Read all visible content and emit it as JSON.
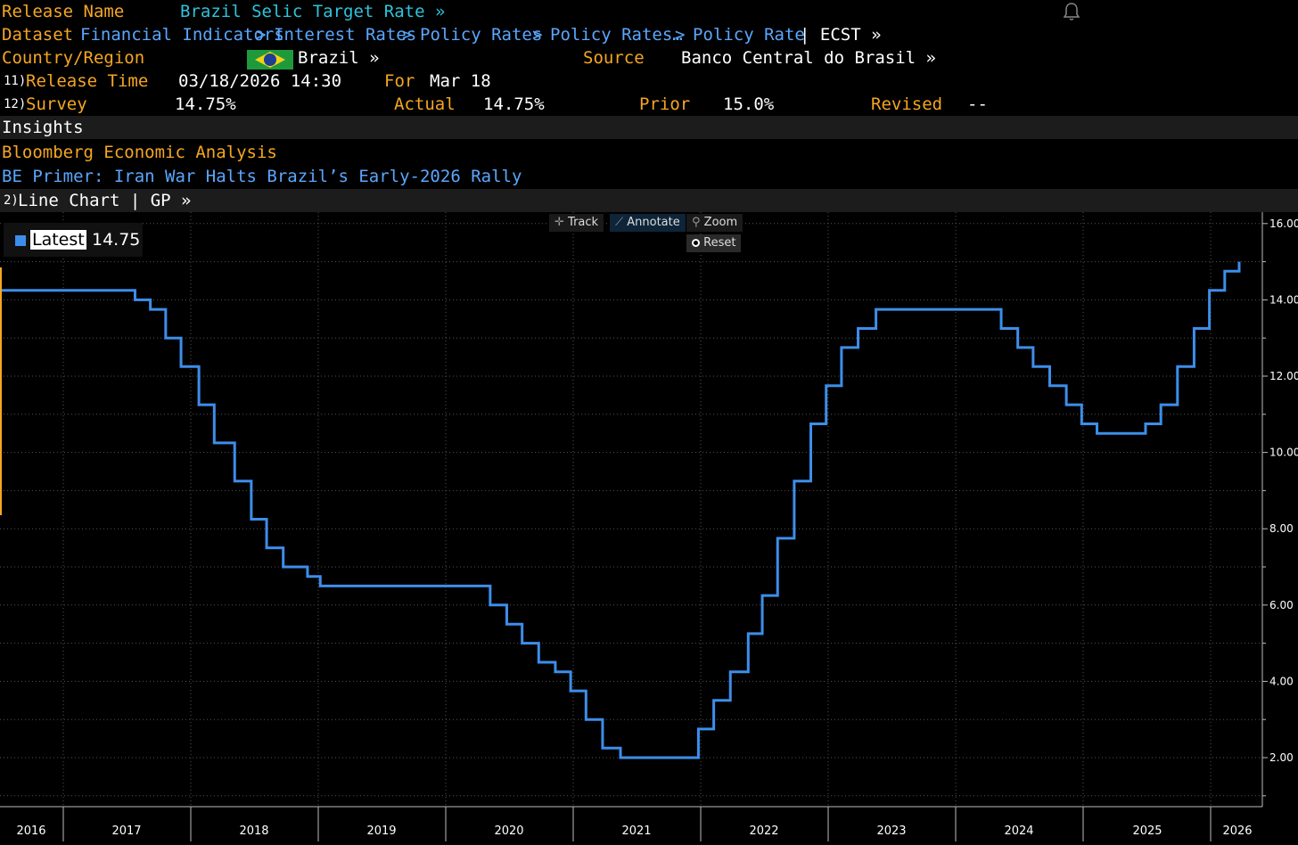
{
  "header": {
    "release_name_label": "Release Name",
    "release_name_value": "Brazil Selic Target Rate »",
    "dataset_label": "Dataset",
    "dataset_path": [
      "Financial Indicators",
      "Interest Rates",
      "Policy Rates",
      "Policy Rates…",
      "Policy Rate"
    ],
    "dataset_sep": ">",
    "dataset_suffix": "| ECST »",
    "country_label": "Country/Region",
    "country_value": "Brazil »",
    "source_label": "Source",
    "source_value": "Banco Central do Brasil »",
    "release_time_num": "11)",
    "release_time_label": "Release Time",
    "release_time_value": "03/18/2026 14:30",
    "for_label": "For",
    "for_value": "Mar 18",
    "survey_num": "12)",
    "survey_label": "Survey",
    "survey_value": "14.75%",
    "actual_label": "Actual",
    "actual_value": "14.75%",
    "prior_label": "Prior",
    "prior_value": "15.0%",
    "revised_label": "Revised",
    "revised_value": "--"
  },
  "insights": {
    "title": "Insights",
    "analysis_link": "Bloomberg Economic Analysis",
    "article_link": "BE Primer: Iran War Halts Brazil’s Early-2026 Rally"
  },
  "chart_header": {
    "num": "2)",
    "label": "Line Chart | GP »"
  },
  "toolbar": {
    "track": "Track",
    "annotate": "Annotate",
    "zoom": "Zoom",
    "reset": "Reset"
  },
  "legend": {
    "label": "Latest",
    "value": "14.75"
  },
  "icons": [
    "bell-icon",
    "brazil-flag-icon",
    "track-icon",
    "annotate-icon",
    "zoom-icon",
    "reset-icon"
  ],
  "colors": {
    "orange": "#f5a623",
    "link_blue": "#5aa7ff",
    "title_cyan": "#2ec4dc",
    "series": "#3d8eea",
    "grid": "#555555"
  },
  "chart_data": {
    "type": "line",
    "title": "",
    "xlabel": "",
    "ylabel": "",
    "step": true,
    "xlim": [
      2015.75,
      2026.3
    ],
    "ylim": [
      0.7,
      16.3
    ],
    "y_ticks": [
      2,
      4,
      6,
      8,
      10,
      12,
      14,
      16
    ],
    "y_tick_labels": [
      "2.00",
      "4.00",
      "6.00",
      "8.00",
      "10.00",
      "12.00",
      "14.00",
      "16.00"
    ],
    "x_tick_labels": [
      "2016",
      "2017",
      "2018",
      "2019",
      "2020",
      "2021",
      "2022",
      "2023",
      "2024",
      "2025",
      "2026"
    ],
    "grid": true,
    "legend_position": "top-left",
    "series": [
      {
        "name": "Latest",
        "color": "#3d8eea",
        "points": [
          [
            2015.75,
            14.25
          ],
          [
            2016.8,
            14.0
          ],
          [
            2016.92,
            13.75
          ],
          [
            2017.04,
            13.0
          ],
          [
            2017.16,
            12.25
          ],
          [
            2017.3,
            11.25
          ],
          [
            2017.42,
            10.25
          ],
          [
            2017.58,
            9.25
          ],
          [
            2017.71,
            8.25
          ],
          [
            2017.83,
            7.5
          ],
          [
            2017.96,
            7.0
          ],
          [
            2018.15,
            6.75
          ],
          [
            2018.25,
            6.5
          ],
          [
            2019.58,
            6.0
          ],
          [
            2019.71,
            5.5
          ],
          [
            2019.83,
            5.0
          ],
          [
            2019.96,
            4.5
          ],
          [
            2020.09,
            4.25
          ],
          [
            2020.21,
            3.75
          ],
          [
            2020.33,
            3.0
          ],
          [
            2020.46,
            2.25
          ],
          [
            2020.6,
            2.0
          ],
          [
            2021.21,
            2.75
          ],
          [
            2021.33,
            3.5
          ],
          [
            2021.46,
            4.25
          ],
          [
            2021.6,
            5.25
          ],
          [
            2021.71,
            6.25
          ],
          [
            2021.83,
            7.75
          ],
          [
            2021.96,
            9.25
          ],
          [
            2022.09,
            10.75
          ],
          [
            2022.21,
            11.75
          ],
          [
            2022.33,
            12.75
          ],
          [
            2022.46,
            13.25
          ],
          [
            2022.6,
            13.75
          ],
          [
            2023.58,
            13.25
          ],
          [
            2023.71,
            12.75
          ],
          [
            2023.83,
            12.25
          ],
          [
            2023.96,
            11.75
          ],
          [
            2024.09,
            11.25
          ],
          [
            2024.21,
            10.75
          ],
          [
            2024.33,
            10.5
          ],
          [
            2024.71,
            10.75
          ],
          [
            2024.83,
            11.25
          ],
          [
            2024.96,
            12.25
          ],
          [
            2025.09,
            13.25
          ],
          [
            2025.21,
            14.25
          ],
          [
            2025.33,
            14.75
          ],
          [
            2025.46,
            15.0
          ],
          [
            2026.2,
            14.75
          ]
        ]
      }
    ]
  }
}
